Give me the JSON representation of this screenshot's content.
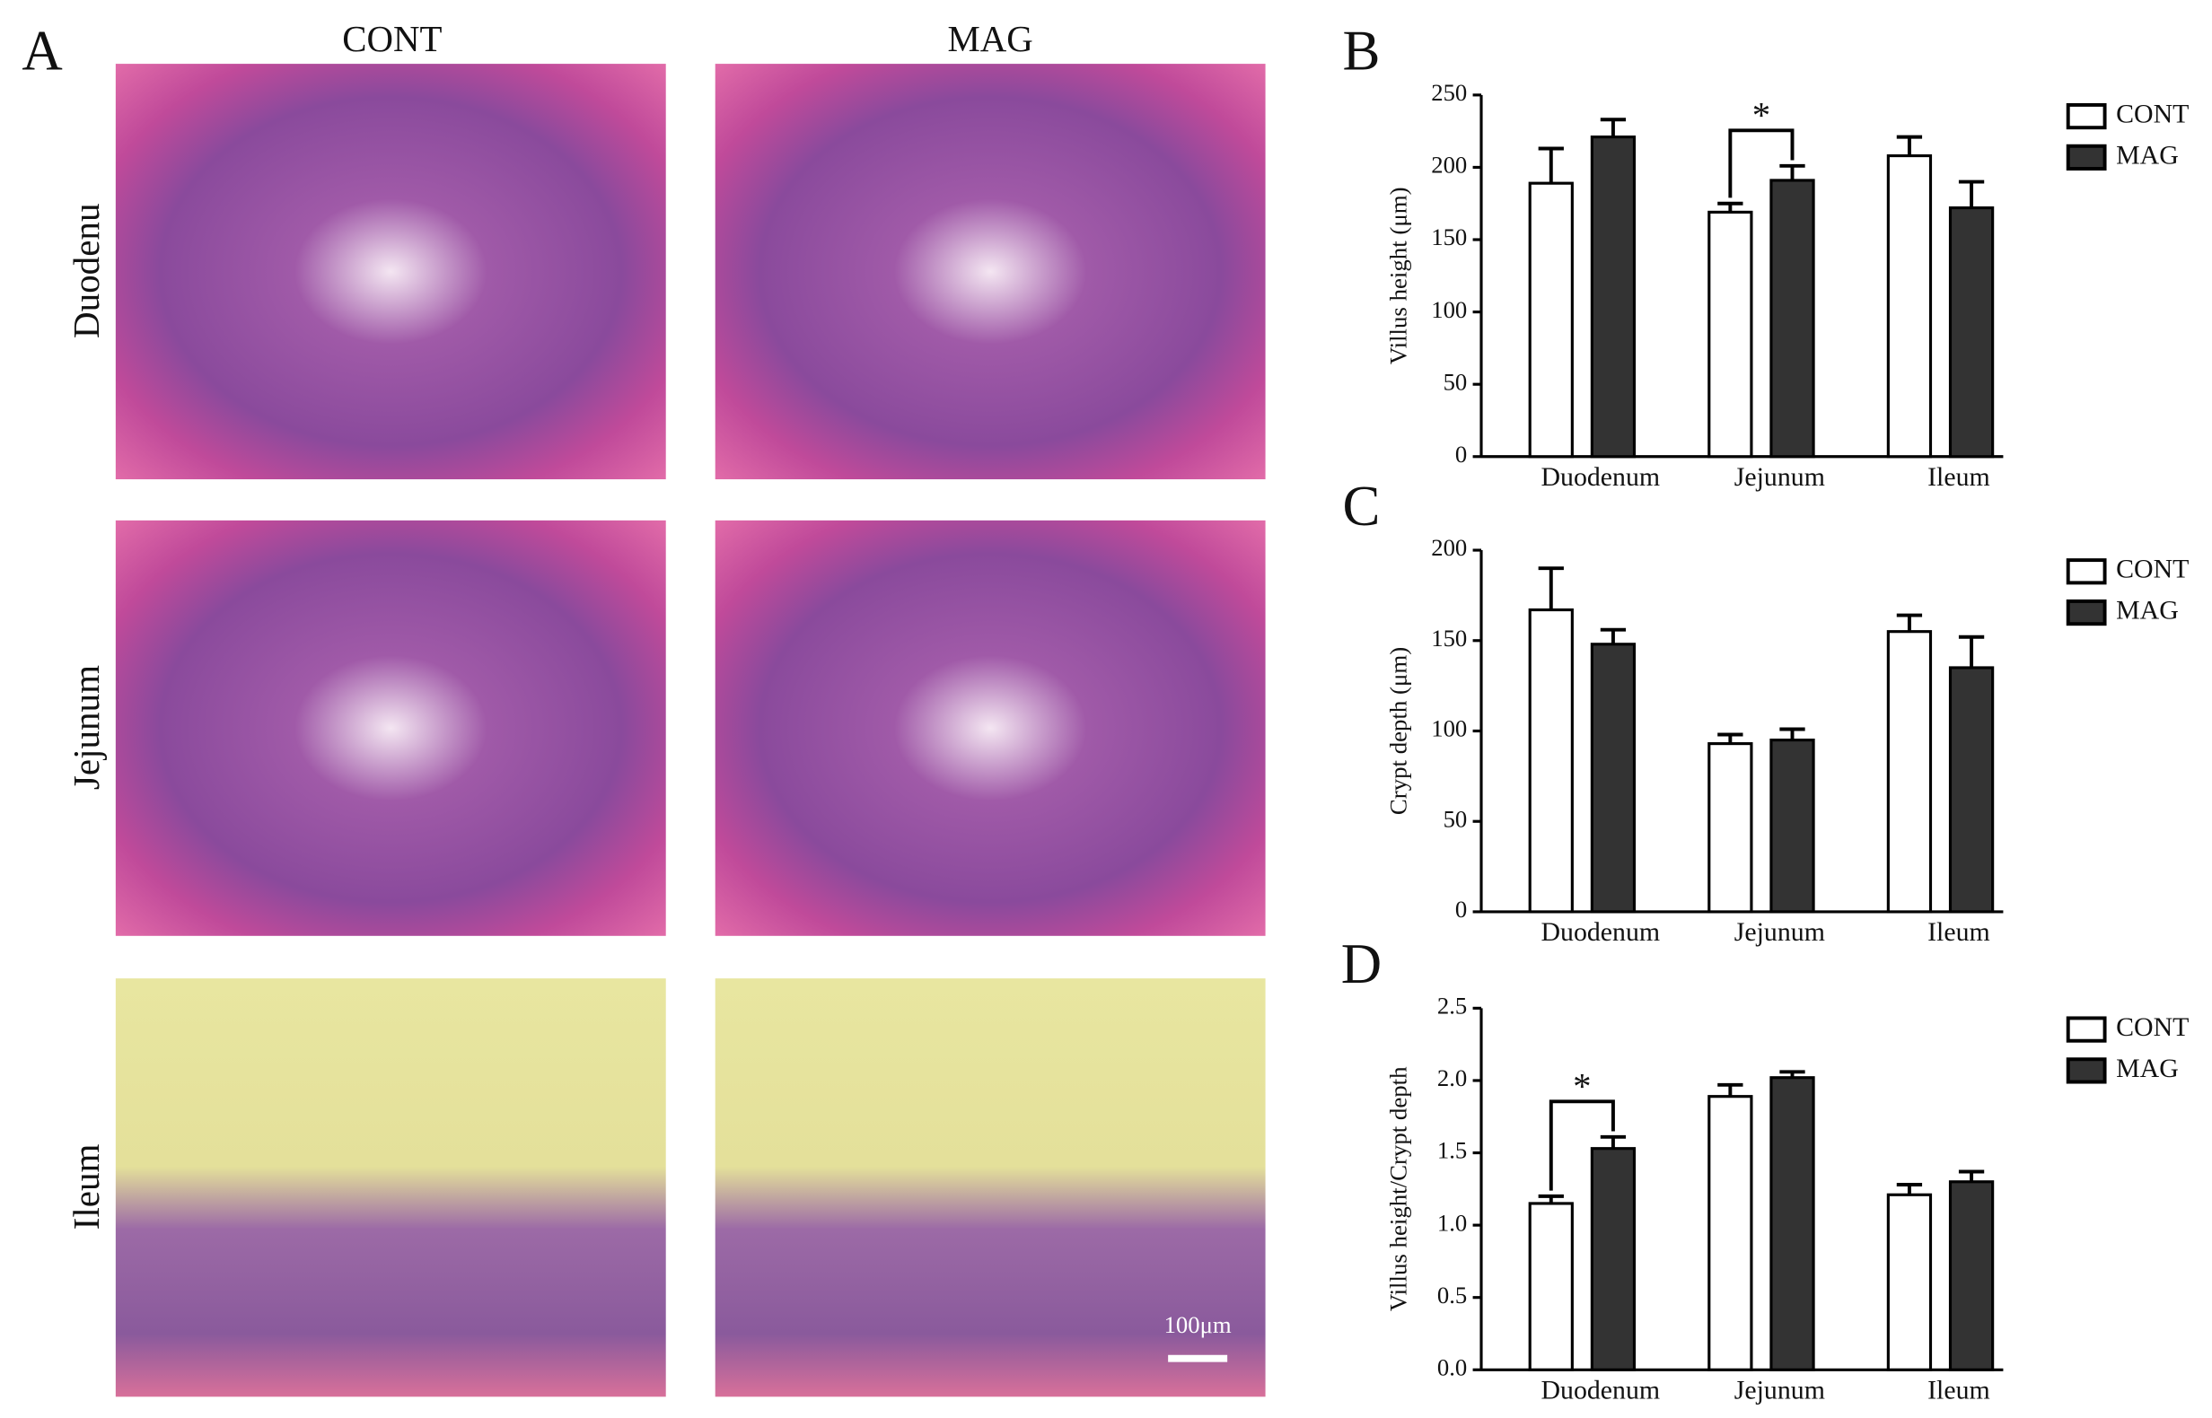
{
  "figure": {
    "panel": "A",
    "columns": [
      "CONT",
      "MAG"
    ],
    "rows": [
      "Duodenu",
      "Jejunum",
      "Ileum"
    ],
    "scale_bar": "100μm"
  },
  "chart_data": [
    {
      "type": "bar",
      "panel": "B",
      "y_label": "Villus height (μm)",
      "categories": [
        "Duodenum",
        "Jejunum",
        "Ileum"
      ],
      "series": [
        {
          "name": "CONT",
          "color": "#ffffff",
          "values": [
            189,
            169,
            208
          ],
          "errors": [
            24,
            6,
            13
          ]
        },
        {
          "name": "MAG",
          "color": "#333333",
          "values": [
            221,
            191,
            172
          ],
          "errors": [
            12,
            10,
            18
          ]
        }
      ],
      "ylim": [
        0,
        250
      ],
      "yticks": [
        0,
        50,
        100,
        150,
        200,
        250
      ],
      "significance": [
        {
          "label": "*",
          "category": "Jejunum"
        }
      ]
    },
    {
      "type": "bar",
      "panel": "C",
      "y_label": "Crypt depth (μm)",
      "categories": [
        "Duodenum",
        "Jejunum",
        "Ileum"
      ],
      "series": [
        {
          "name": "CONT",
          "color": "#ffffff",
          "values": [
            167,
            93,
            155
          ],
          "errors": [
            23,
            5,
            9
          ]
        },
        {
          "name": "MAG",
          "color": "#333333",
          "values": [
            148,
            95,
            135
          ],
          "errors": [
            8,
            6,
            17
          ]
        }
      ],
      "ylim": [
        0,
        200
      ],
      "yticks": [
        0,
        50,
        100,
        150,
        200
      ],
      "significance": []
    },
    {
      "type": "bar",
      "panel": "D",
      "y_label": "Villus height/Crypt depth",
      "categories": [
        "Duodenum",
        "Jejunum",
        "Ileum"
      ],
      "series": [
        {
          "name": "CONT",
          "color": "#ffffff",
          "values": [
            1.15,
            1.89,
            1.21
          ],
          "errors": [
            0.05,
            0.08,
            0.07
          ]
        },
        {
          "name": "MAG",
          "color": "#333333",
          "values": [
            1.53,
            2.02,
            1.3
          ],
          "errors": [
            0.08,
            0.04,
            0.07
          ]
        }
      ],
      "ylim": [
        0,
        2.5
      ],
      "yticks": [
        {
          "value": 0,
          "label": "0.0"
        },
        0.5,
        {
          "value": 1,
          "label": "1.0"
        },
        1.5,
        {
          "value": 2,
          "label": "2.0"
        },
        2.5
      ],
      "significance": [
        {
          "label": "*",
          "category": "Duodenum"
        }
      ]
    }
  ]
}
